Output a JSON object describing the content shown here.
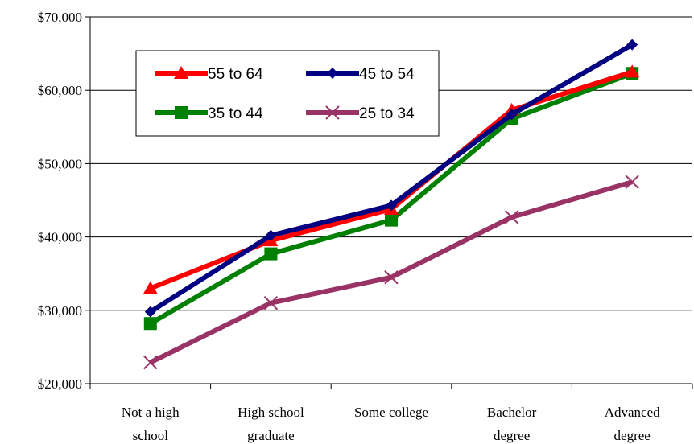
{
  "chart_data": {
    "type": "line",
    "title": "",
    "xlabel": "",
    "ylabel": "",
    "categories": [
      [
        "Not a high",
        "school"
      ],
      [
        "High school",
        "graduate"
      ],
      [
        "Some college"
      ],
      [
        "Bachelor",
        "degree"
      ],
      [
        "Advanced",
        "degree"
      ]
    ],
    "ylim": [
      20000,
      70000
    ],
    "yticks": [
      20000,
      30000,
      40000,
      50000,
      60000,
      70000
    ],
    "ytick_labels": [
      "$20,000",
      "$30,000",
      "$40,000",
      "$50,000",
      "$60,000",
      "$70,000"
    ],
    "grid": true,
    "legend": "top-left",
    "series": [
      {
        "name": "55 to 64",
        "color": "#ff0000",
        "marker": "triangle",
        "values": [
          33000,
          39500,
          43800,
          57300,
          62500
        ]
      },
      {
        "name": "45 to 54",
        "color": "#000080",
        "marker": "diamond",
        "values": [
          29800,
          40200,
          44300,
          56700,
          66200
        ]
      },
      {
        "name": "35 to 44",
        "color": "#008000",
        "marker": "square",
        "values": [
          28200,
          37700,
          42300,
          56100,
          62300
        ]
      },
      {
        "name": "25 to 34",
        "color": "#993366",
        "marker": "x",
        "values": [
          22900,
          31000,
          34500,
          42700,
          47500
        ]
      }
    ]
  }
}
